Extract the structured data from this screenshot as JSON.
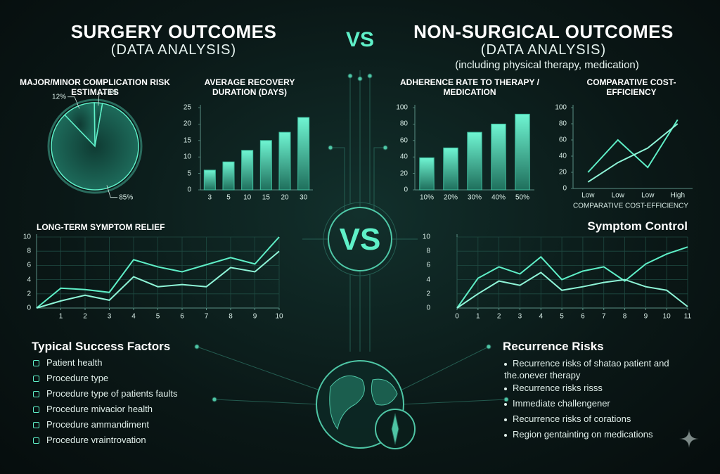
{
  "header": {
    "left_title": "SURGERY OUTCOMES",
    "left_subtitle": "(DATA ANALYSIS)",
    "vs_top": "VS",
    "right_title": "NON-SURGICAL OUTCOMES",
    "right_subtitle": "(DATA ANALYSIS)",
    "right_note": "(including physical therapy, medication)",
    "vs_center": "VS"
  },
  "chart_data": [
    {
      "type": "pie",
      "title": "MAJOR/MINOR COMPLICATION RISK ESTIMATES",
      "values": [
        3,
        12,
        85
      ],
      "value_labels": [
        "3%",
        "12%",
        "85%"
      ],
      "color": "#5ff0c8"
    },
    {
      "type": "bar",
      "title": "AVERAGE RECOVERY DURATION (DAYS)",
      "categories": [
        "3",
        "5",
        "10",
        "15",
        "20",
        "30"
      ],
      "values": [
        6,
        8.5,
        12,
        15,
        17.5,
        22
      ],
      "color": "#3fbf9f",
      "ylim": [
        0,
        25
      ],
      "yticks": [
        0,
        5,
        10,
        15,
        20,
        25
      ],
      "grid": false
    },
    {
      "type": "bar",
      "title": "ADHERENCE RATE TO THERAPY / MEDICATION",
      "categories": [
        "10%",
        "20%",
        "30%",
        "40%",
        "50%"
      ],
      "values": [
        39,
        51,
        70,
        80,
        92
      ],
      "color": "#3fbf9f",
      "ylim": [
        0,
        100
      ],
      "yticks": [
        0,
        20,
        40,
        60,
        80,
        100
      ],
      "grid": false
    },
    {
      "type": "line",
      "title": "COMPARATIVE COST-EFFICIENCY",
      "xlabel": "COMPARATIVE COST-EFFICIENCY",
      "categories": [
        "Low",
        "Low",
        "Low",
        "High"
      ],
      "series": [
        {
          "color": "#5ff0c8",
          "values": [
            20,
            60,
            26,
            85
          ]
        },
        {
          "color": "#8ff5d8",
          "values": [
            8,
            32,
            50,
            80
          ]
        }
      ],
      "ylim": [
        0,
        100
      ],
      "yticks": [
        0,
        20,
        40,
        60,
        80,
        100
      ],
      "grid": false
    },
    {
      "type": "line",
      "title": "LONG-TERM SYMPTOM RELIEF",
      "x": [
        0,
        1,
        2,
        3,
        4,
        5,
        6,
        7,
        8,
        9,
        10
      ],
      "series": [
        {
          "color": "#5ff0c8",
          "values": [
            0,
            2.8,
            2.6,
            2.2,
            6.8,
            5.8,
            5.1,
            6.1,
            7.1,
            6.2,
            10
          ]
        },
        {
          "color": "#8ff5d8",
          "values": [
            0,
            1,
            1.8,
            1.1,
            4.4,
            3,
            3.3,
            3,
            5.7,
            5.1,
            8
          ]
        }
      ],
      "xlim": [
        0,
        10
      ],
      "xticks": [
        1,
        2,
        3,
        4,
        5,
        6,
        7,
        8,
        9,
        10
      ],
      "ylim": [
        0,
        10
      ],
      "yticks": [
        0,
        2,
        4,
        6,
        8,
        10
      ],
      "grid": true
    },
    {
      "type": "line",
      "title": "Symptom Control",
      "x": [
        0,
        1,
        2,
        3,
        4,
        5,
        6,
        7,
        8,
        9,
        10,
        11
      ],
      "series": [
        {
          "color": "#5ff0c8",
          "values": [
            0,
            4.2,
            5.8,
            4.8,
            7.2,
            4,
            5.2,
            5.8,
            3.8,
            6.2,
            7.6,
            8.6
          ]
        },
        {
          "color": "#8ff5d8",
          "values": [
            0,
            2,
            3.8,
            3.2,
            5,
            2.5,
            3,
            3.6,
            4,
            3,
            2.5,
            0.2
          ]
        }
      ],
      "xlim": [
        0,
        11
      ],
      "xticks": [
        0,
        1,
        2,
        3,
        4,
        5,
        6,
        7,
        8,
        9,
        10,
        11
      ],
      "ylim": [
        0,
        10
      ],
      "yticks": [
        0,
        2,
        4,
        6,
        8,
        10
      ],
      "grid": true
    }
  ],
  "success_factors": {
    "title": "Typical Success Factors",
    "items": [
      "Patient health",
      "Procedure type",
      "Procedure type of patients faults",
      "Procedure mivacior health",
      "Procedure ammandiment",
      "Procedure vraintrovation"
    ]
  },
  "recurrence_risks": {
    "title": "Recurrence Risks",
    "items": [
      "Recurrence risks of shatao patient and the.onever therapy",
      "Recurrence risks risss",
      "Immediate challengener",
      "Recurrence risks of corations",
      "Region gentainting on medications"
    ]
  }
}
